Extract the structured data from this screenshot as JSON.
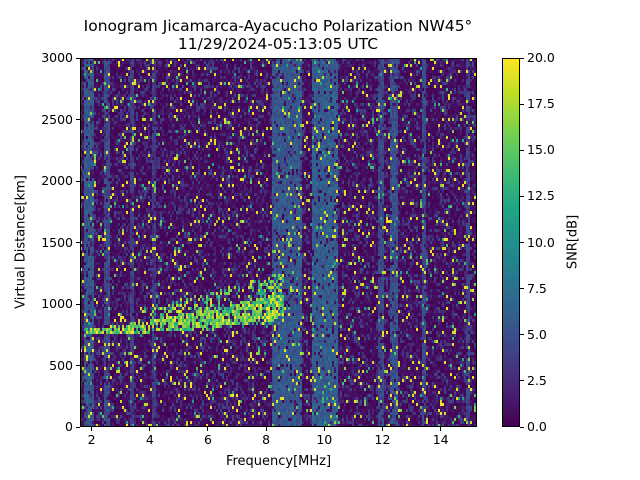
{
  "chart_data": {
    "type": "heatmap",
    "title": "Ionogram Jicamarca-Ayacucho Polarization NW45°",
    "subtitle": "11/29/2024-05:13:05 UTC",
    "xlabel": "Frequency[MHz]",
    "ylabel": "Virtual Distance[km]",
    "xlim": [
      1.6,
      15.25
    ],
    "ylim": [
      0,
      3000
    ],
    "xticks": [
      2,
      4,
      6,
      8,
      10,
      12,
      14
    ],
    "yticks": [
      0,
      500,
      1000,
      1500,
      2000,
      2500,
      3000
    ],
    "colorbar": {
      "label": "SNR[dB]",
      "colormap": "viridis",
      "range": [
        0,
        20
      ],
      "ticks": [
        "0.0",
        "2.5",
        "5.0",
        "7.5",
        "10.0",
        "12.5",
        "15.0",
        "17.5",
        "20.0"
      ]
    },
    "grid": false,
    "noise_bands_mhz": [
      {
        "from": 1.75,
        "to": 2.05,
        "snr": 5.5
      },
      {
        "from": 2.45,
        "to": 2.6,
        "snr": 4.5
      },
      {
        "from": 3.3,
        "to": 3.45,
        "snr": 4.0
      },
      {
        "from": 4.05,
        "to": 4.2,
        "snr": 3.5
      },
      {
        "from": 8.2,
        "to": 9.2,
        "snr": 5.5
      },
      {
        "from": 9.6,
        "to": 10.45,
        "snr": 6.0
      },
      {
        "from": 11.85,
        "to": 12.05,
        "snr": 4.5
      },
      {
        "from": 12.25,
        "to": 12.5,
        "snr": 5.0
      },
      {
        "from": 13.35,
        "to": 13.5,
        "snr": 4.5
      },
      {
        "from": 14.9,
        "to": 15.0,
        "snr": 4.0
      }
    ],
    "echo_trace": {
      "points": [
        {
          "freq_mhz": 1.8,
          "distance_km": 770
        },
        {
          "freq_mhz": 3.0,
          "distance_km": 790
        },
        {
          "freq_mhz": 4.5,
          "distance_km": 830
        },
        {
          "freq_mhz": 6.0,
          "distance_km": 880
        },
        {
          "freq_mhz": 7.0,
          "distance_km": 920
        },
        {
          "freq_mhz": 8.0,
          "distance_km": 960
        },
        {
          "freq_mhz": 8.6,
          "distance_km": 980
        }
      ],
      "snr": 18,
      "bright_cluster": {
        "freq_mhz": [
          7.7,
          8.3
        ],
        "distance_km": [
          950,
          1200
        ],
        "snr": 17
      }
    }
  }
}
